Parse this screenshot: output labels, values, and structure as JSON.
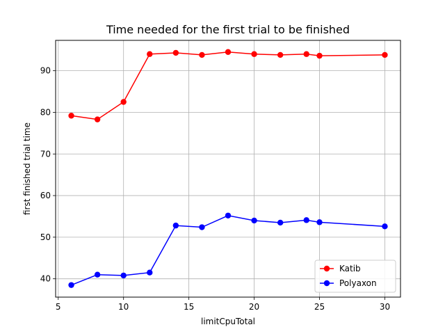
{
  "chart_data": {
    "type": "line",
    "title": "Time needed for the first trial to be finished",
    "xlabel": "limitCpuTotal",
    "ylabel": "first finished trial time",
    "x": [
      6,
      8,
      10,
      12,
      14,
      16,
      18,
      20,
      22,
      24,
      25,
      30
    ],
    "xlim": [
      4.8,
      31.2
    ],
    "ylim": [
      35.6,
      97.3
    ],
    "xticks": [
      5,
      10,
      15,
      20,
      25,
      30
    ],
    "yticks": [
      40,
      50,
      60,
      70,
      80,
      90
    ],
    "grid": true,
    "legend_position": "bottom-right",
    "series": [
      {
        "name": "Katib",
        "color": "#ff0000",
        "values": [
          79.2,
          78.3,
          82.5,
          94.0,
          94.3,
          93.8,
          94.5,
          94.0,
          93.8,
          94.0,
          93.6,
          93.8
        ]
      },
      {
        "name": "Polyaxon",
        "color": "#0000ff",
        "values": [
          38.5,
          41.0,
          40.8,
          41.5,
          52.8,
          52.4,
          55.2,
          54.0,
          53.5,
          54.1,
          53.6,
          52.6
        ]
      }
    ]
  }
}
